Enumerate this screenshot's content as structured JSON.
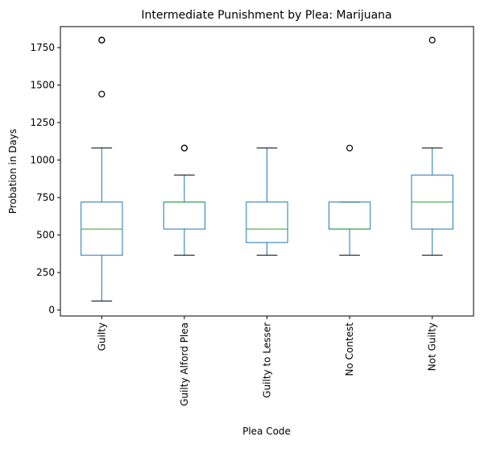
{
  "chart_data": {
    "type": "box",
    "title": "Intermediate Punishment by Plea: Marijuana",
    "xlabel": "Plea Code",
    "ylabel": "Probation in Days",
    "categories": [
      "Guilty",
      "Guilty Alford Plea",
      "Guilty to Lesser",
      "No Contest",
      "Not Guilty"
    ],
    "ylim": [
      -40,
      1890
    ],
    "yticks": [
      0,
      250,
      500,
      750,
      1000,
      1250,
      1500,
      1750
    ],
    "ytick_labels": [
      "0",
      "250",
      "500",
      "750",
      "1000",
      "1250",
      "1500",
      "1750"
    ],
    "grid": false,
    "colors": {
      "box": "#1f77b4",
      "median": "#2ca02c",
      "whisker_cap": "#000000",
      "flier": "#000000"
    },
    "boxes": [
      {
        "category": "Guilty",
        "whisker_low": 60,
        "q1": 365,
        "median": 540,
        "q3": 720,
        "whisker_high": 1080,
        "outliers": [
          1440,
          1800,
          1800
        ]
      },
      {
        "category": "Guilty Alford Plea",
        "whisker_low": 365,
        "q1": 540,
        "median": 720,
        "q3": 720,
        "whisker_high": 900,
        "outliers": [
          1080,
          1080
        ]
      },
      {
        "category": "Guilty to Lesser",
        "whisker_low": 365,
        "q1": 450,
        "median": 540,
        "q3": 720,
        "whisker_high": 1080,
        "outliers": []
      },
      {
        "category": "No Contest",
        "whisker_low": 365,
        "q1": 540,
        "median": 540,
        "q3": 720,
        "whisker_high": 720,
        "outliers": [
          1080
        ]
      },
      {
        "category": "Not Guilty",
        "whisker_low": 365,
        "q1": 540,
        "median": 720,
        "q3": 900,
        "whisker_high": 1080,
        "outliers": [
          1800
        ]
      }
    ]
  }
}
